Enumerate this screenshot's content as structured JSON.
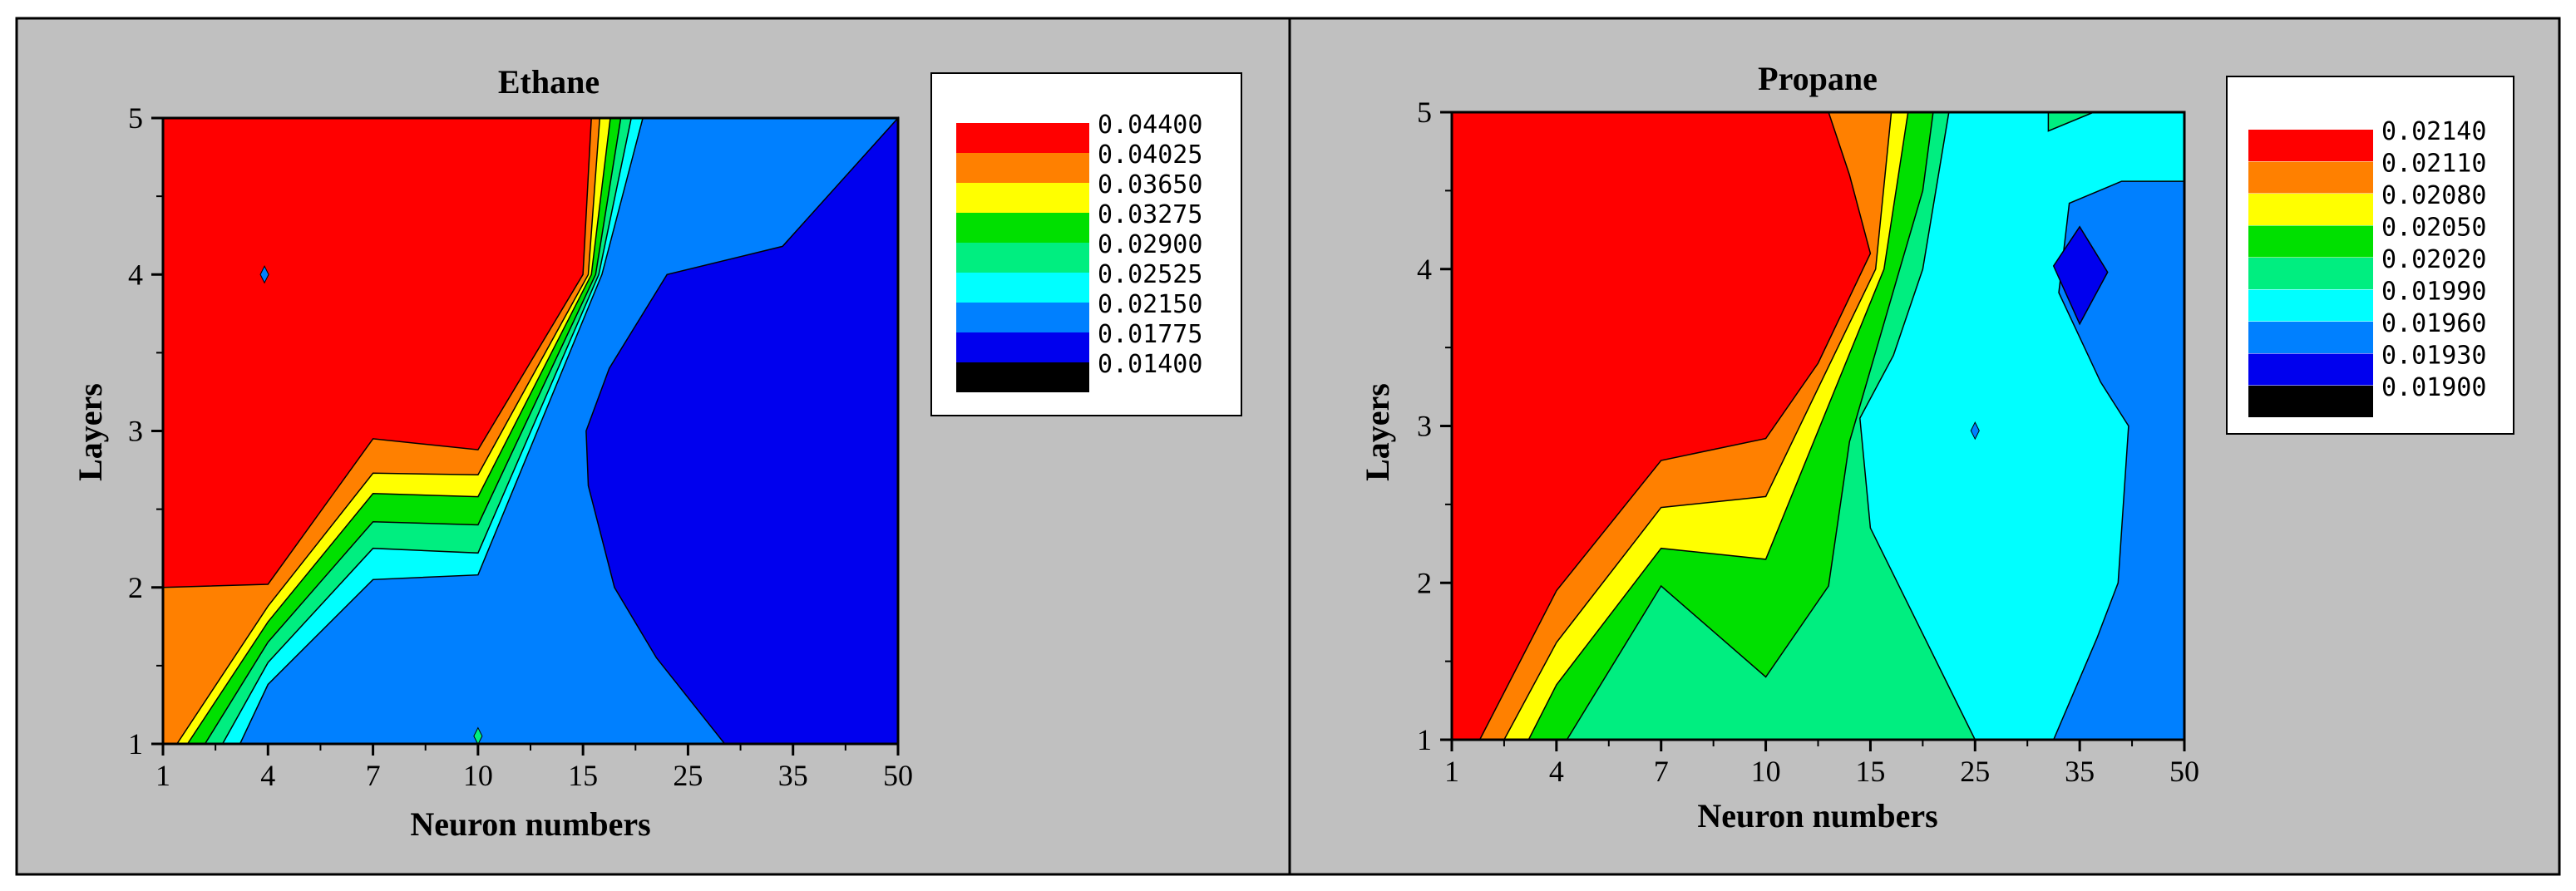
{
  "chart_data": [
    {
      "type": "contour",
      "title": "Ethane",
      "xlabel": "Neuron numbers",
      "ylabel": "Layers",
      "x_ticks": [
        "1",
        "4",
        "7",
        "10",
        "15",
        "25",
        "35",
        "50"
      ],
      "y_ticks": [
        "1",
        "2",
        "3",
        "4",
        "5"
      ],
      "ylim": [
        1,
        5
      ],
      "levels": [
        "0.04400",
        "0.04025",
        "0.03650",
        "0.03275",
        "0.02900",
        "0.02525",
        "0.02150",
        "0.01775",
        "0.01400"
      ],
      "level_colors": [
        "#ff0000",
        "#ff8000",
        "#ffff00",
        "#00e000",
        "#00ee80",
        "#00ffff",
        "#0080ff",
        "#0000ee",
        "#000000"
      ],
      "bands": [
        {
          "level": "0.04025",
          "color": "#ff8000",
          "points": [
            [
              1,
              2
            ],
            [
              4,
              2.02
            ],
            [
              7,
              2.95
            ],
            [
              10,
              2.88
            ],
            [
              15,
              4
            ],
            [
              15.8,
              5
            ],
            [
              50,
              5
            ],
            [
              50,
              1
            ],
            [
              1,
              1
            ]
          ]
        },
        {
          "level": "0.03650",
          "color": "#ffff00",
          "points": [
            [
              1.4,
              1
            ],
            [
              4,
              1.88
            ],
            [
              7,
              2.73
            ],
            [
              10,
              2.72
            ],
            [
              15.5,
              4
            ],
            [
              16.6,
              5
            ],
            [
              50,
              5
            ],
            [
              50,
              1
            ]
          ]
        },
        {
          "level": "0.03275",
          "color": "#00e000",
          "points": [
            [
              1.7,
              1
            ],
            [
              4,
              1.78
            ],
            [
              7,
              2.6
            ],
            [
              10,
              2.58
            ],
            [
              15.8,
              4
            ],
            [
              17.6,
              5
            ],
            [
              50,
              5
            ],
            [
              50,
              1
            ]
          ]
        },
        {
          "level": "0.02900",
          "color": "#00ee80",
          "points": [
            [
              2.2,
              1
            ],
            [
              4,
              1.65
            ],
            [
              7,
              2.42
            ],
            [
              10,
              2.4
            ],
            [
              16.2,
              4
            ],
            [
              18.6,
              5
            ],
            [
              50,
              5
            ],
            [
              50,
              1
            ]
          ]
        },
        {
          "level": "0.02525",
          "color": "#00ffff",
          "points": [
            [
              2.7,
              1
            ],
            [
              4,
              1.52
            ],
            [
              7,
              2.25
            ],
            [
              10,
              2.22
            ],
            [
              16.5,
              4
            ],
            [
              19.6,
              5
            ],
            [
              50,
              5
            ],
            [
              50,
              1
            ]
          ]
        },
        {
          "level": "0.02150",
          "color": "#0080ff",
          "points": [
            [
              3.2,
              1
            ],
            [
              4,
              1.38
            ],
            [
              7,
              2.05
            ],
            [
              10,
              2.08
            ],
            [
              16.8,
              4
            ],
            [
              20.7,
              5
            ],
            [
              50,
              5
            ],
            [
              50,
              1
            ]
          ]
        },
        {
          "level": "0.01775",
          "color": "#0000ee",
          "points": [
            [
              28.5,
              1
            ],
            [
              22,
              1.55
            ],
            [
              18,
              2
            ],
            [
              15.5,
              2.65
            ],
            [
              15.3,
              3
            ],
            [
              17.5,
              3.4
            ],
            [
              23,
              4
            ],
            [
              34,
              4.18
            ],
            [
              50,
              5
            ],
            [
              50,
              1
            ]
          ]
        }
      ],
      "markers": [
        [
          3.9,
          4.0
        ],
        [
          10,
          1.05
        ]
      ]
    },
    {
      "type": "contour",
      "title": "Propane",
      "xlabel": "Neuron numbers",
      "ylabel": "Layers",
      "x_ticks": [
        "1",
        "4",
        "7",
        "10",
        "15",
        "25",
        "35",
        "50"
      ],
      "y_ticks": [
        "1",
        "2",
        "3",
        "4",
        "5"
      ],
      "ylim": [
        1,
        5
      ],
      "levels": [
        "0.02140",
        "0.02110",
        "0.02080",
        "0.02050",
        "0.02020",
        "0.01990",
        "0.01960",
        "0.01930",
        "0.01900"
      ],
      "level_colors": [
        "#ff0000",
        "#ff8000",
        "#ffff00",
        "#00e000",
        "#00ee80",
        "#00ffff",
        "#0080ff",
        "#0000ee",
        "#000000"
      ],
      "bands": [
        {
          "level": "0.02110",
          "color": "#ff8000",
          "points": [
            [
              1.8,
              1
            ],
            [
              4,
              1.95
            ],
            [
              7,
              2.78
            ],
            [
              10,
              2.92
            ],
            [
              12.5,
              3.4
            ],
            [
              15,
              4.1
            ],
            [
              14,
              4.6
            ],
            [
              13,
              5
            ],
            [
              50,
              5
            ],
            [
              50,
              1
            ]
          ]
        },
        {
          "level": "0.02080",
          "color": "#ffff00",
          "points": [
            [
              2.5,
              1
            ],
            [
              4,
              1.62
            ],
            [
              7,
              2.48
            ],
            [
              10,
              2.55
            ],
            [
              15.5,
              4
            ],
            [
              17,
              5
            ],
            [
              50,
              5
            ],
            [
              50,
              1
            ]
          ]
        },
        {
          "level": "0.02050",
          "color": "#00e000",
          "points": [
            [
              3.2,
              1
            ],
            [
              4,
              1.35
            ],
            [
              7,
              2.22
            ],
            [
              10,
              2.15
            ],
            [
              16.3,
              4
            ],
            [
              18.6,
              5
            ],
            [
              50,
              5
            ],
            [
              50,
              1
            ]
          ]
        },
        {
          "level": "0.02020",
          "color": "#00ee80",
          "points": [
            [
              4.3,
              1
            ],
            [
              7,
              1.98
            ],
            [
              10,
              1.4
            ],
            [
              13,
              1.98
            ],
            [
              14,
              2.9
            ],
            [
              17.8,
              4
            ],
            [
              20,
              4.5
            ],
            [
              21,
              5
            ],
            [
              50,
              5
            ],
            [
              50,
              1
            ]
          ]
        },
        {
          "level": "0.01990",
          "color": "#00ffff",
          "points": [
            [
              25,
              1
            ],
            [
              15,
              2.35
            ],
            [
              14.5,
              3.05
            ],
            [
              17.2,
              3.45
            ],
            [
              20,
              4
            ],
            [
              22.5,
              5
            ],
            [
              32,
              5
            ],
            [
              32,
              4.88
            ],
            [
              37,
              5
            ],
            [
              50,
              5
            ],
            [
              50,
              1
            ]
          ]
        },
        {
          "level": "0.01960",
          "color": "#0080ff",
          "points": [
            [
              32.5,
              1
            ],
            [
              37.5,
              1.65
            ],
            [
              40.5,
              2
            ],
            [
              42,
              3
            ],
            [
              38,
              3.28
            ],
            [
              33,
              3.85
            ],
            [
              34,
              4.42
            ],
            [
              41,
              4.56
            ],
            [
              50,
              4.56
            ],
            [
              50,
              1
            ]
          ]
        },
        {
          "level": "0.01930",
          "color": "#0000ee",
          "points": [
            [
              35,
              3.65
            ],
            [
              32.5,
              4.02
            ],
            [
              35,
              4.27
            ],
            [
              39,
              3.98
            ]
          ]
        }
      ],
      "markers": [
        [
          25,
          2.97
        ]
      ]
    }
  ]
}
